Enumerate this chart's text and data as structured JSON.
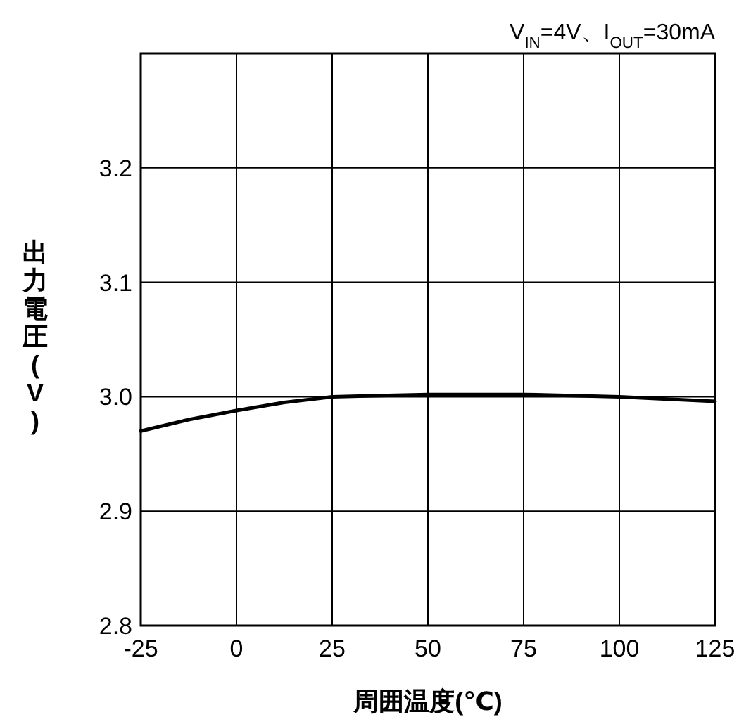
{
  "chart_data": {
    "type": "line",
    "subtitle": "V$_{IN}$=4V、I$_{OUT}$=30mA",
    "xlabel": "周囲温度(℃)",
    "ylabel": "出力電圧(V)",
    "x": [
      -25,
      -12.5,
      0,
      12.5,
      25,
      37.5,
      50,
      62.5,
      75,
      87.5,
      100,
      112.5,
      125
    ],
    "series": [
      {
        "color": "#000000",
        "values": [
          2.97,
          2.98,
          2.988,
          2.995,
          3.0,
          3.001,
          3.002,
          3.002,
          3.002,
          3.001,
          3.0,
          2.998,
          2.996
        ]
      }
    ],
    "xlim": [
      -25,
      125
    ],
    "xticks": [
      -25,
      0,
      25,
      50,
      75,
      100,
      125
    ],
    "ylim": [
      2.8,
      3.3
    ],
    "yticks": [
      2.8,
      2.9,
      {
        "value": 3.0,
        "label": "3.0"
      },
      3.1,
      3.2
    ],
    "grid": true,
    "marker": "none",
    "line_style": "solid"
  }
}
